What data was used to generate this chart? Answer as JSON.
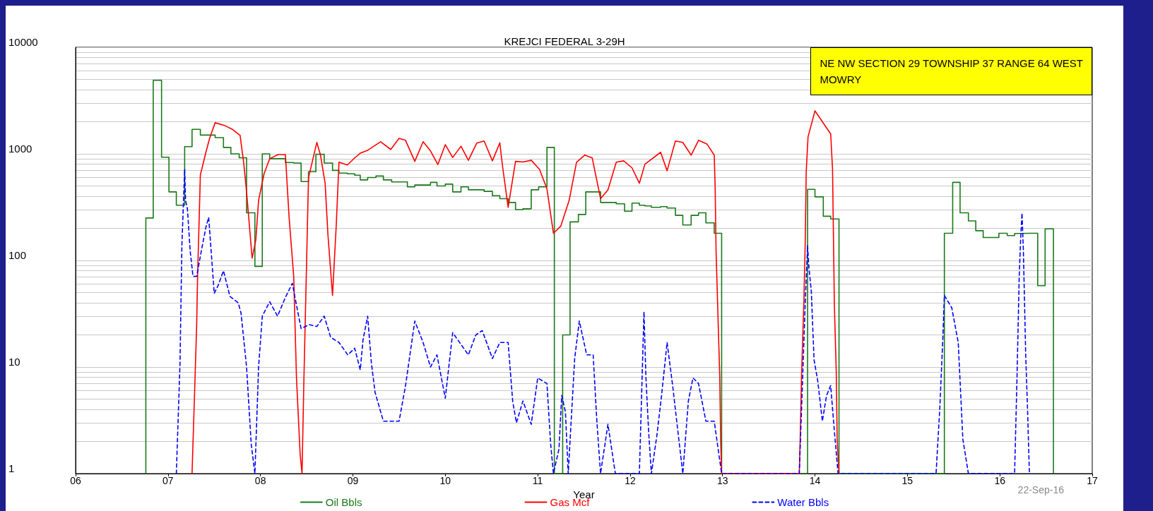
{
  "chart_data": {
    "type": "line",
    "title": "KREJCI FEDERAL 3-29H",
    "xlabel": "Year",
    "annotations": [
      "NE NW SECTION 29 TOWNSHIP 37 RANGE 64 WEST",
      "MOWRY",
      "22-Sep-16"
    ],
    "xlim": [
      6,
      17
    ],
    "xticks": [
      {
        "value": 6,
        "label": "06"
      },
      {
        "value": 7,
        "label": "07"
      },
      {
        "value": 8,
        "label": "08"
      },
      {
        "value": 9,
        "label": "09"
      },
      {
        "value": 10,
        "label": "10"
      },
      {
        "value": 11,
        "label": "11"
      },
      {
        "value": 12,
        "label": "12"
      },
      {
        "value": 13,
        "label": "13"
      },
      {
        "value": 14,
        "label": "14"
      },
      {
        "value": 15,
        "label": "15"
      },
      {
        "value": 16,
        "label": "16"
      },
      {
        "value": 17,
        "label": "17"
      }
    ],
    "ylim": [
      1,
      10000
    ],
    "yticks": [
      1,
      {
        "value": 2,
        "label": null
      },
      {
        "value": 3,
        "label": null
      },
      {
        "value": 4,
        "label": null
      },
      {
        "value": 5,
        "label": null
      },
      {
        "value": 6,
        "label": null
      },
      {
        "value": 7,
        "label": null
      },
      {
        "value": 8,
        "label": null
      },
      {
        "value": 9,
        "label": null
      },
      10,
      {
        "value": 20,
        "label": null
      },
      {
        "value": 30,
        "label": null
      },
      {
        "value": 40,
        "label": null
      },
      {
        "value": 50,
        "label": null
      },
      {
        "value": 60,
        "label": null
      },
      {
        "value": 70,
        "label": null
      },
      {
        "value": 80,
        "label": null
      },
      {
        "value": 90,
        "label": null
      },
      100,
      {
        "value": 200,
        "label": null
      },
      {
        "value": 300,
        "label": null
      },
      {
        "value": 400,
        "label": null
      },
      {
        "value": 500,
        "label": null
      },
      {
        "value": 600,
        "label": null
      },
      {
        "value": 700,
        "label": null
      },
      {
        "value": 800,
        "label": null
      },
      {
        "value": 900,
        "label": null
      },
      1000,
      {
        "value": 2000,
        "label": null
      },
      {
        "value": 3000,
        "label": null
      },
      {
        "value": 4000,
        "label": null
      },
      {
        "value": 5000,
        "label": null
      },
      {
        "value": 6000,
        "label": null
      },
      {
        "value": 7000,
        "label": null
      },
      {
        "value": 8000,
        "label": null
      },
      {
        "value": 9000,
        "label": null
      },
      10000
    ],
    "log": "y",
    "grid": "y",
    "legend": "bottom",
    "marker": "none",
    "series": [
      {
        "name": "Oil Bbls",
        "type": "step",
        "line_style": "solid",
        "color": "#1a7a1a",
        "x": [
          6.76,
          6.76,
          6.84,
          6.93,
          7.01,
          7.09,
          7.18,
          7.26,
          7.35,
          7.51,
          7.6,
          7.68,
          7.77,
          7.85,
          7.94,
          8.02,
          8.1,
          8.27,
          8.36,
          8.44,
          8.52,
          8.6,
          8.69,
          8.78,
          8.85,
          8.94,
          9.02,
          9.08,
          9.16,
          9.25,
          9.33,
          9.42,
          9.59,
          9.67,
          9.84,
          9.91,
          10.0,
          10.08,
          10.17,
          10.25,
          10.42,
          10.51,
          10.59,
          10.68,
          10.76,
          10.84,
          10.93,
          11.01,
          11.1,
          11.18,
          11.27,
          11.35,
          11.44,
          11.52,
          11.68,
          11.76,
          11.85,
          11.94,
          12.02,
          12.1,
          12.16,
          12.23,
          12.33,
          12.4,
          12.49,
          12.57,
          12.66,
          12.74,
          12.82,
          12.91,
          12.99,
          13.92,
          14.0,
          14.09,
          14.17,
          14.26,
          15.4,
          15.49,
          15.57,
          15.66,
          15.74,
          15.82,
          15.99,
          16.08,
          16.16,
          16.24,
          16.32,
          16.41,
          16.49,
          16.58
        ],
        "values": [
          1,
          250,
          4900,
          930,
          440,
          330,
          1170,
          1700,
          1500,
          1420,
          1150,
          1000,
          920,
          280,
          88,
          1000,
          900,
          830,
          820,
          550,
          680,
          990,
          820,
          700,
          660,
          650,
          630,
          570,
          600,
          620,
          570,
          545,
          490,
          510,
          540,
          500,
          520,
          440,
          490,
          460,
          445,
          405,
          380,
          350,
          300,
          305,
          460,
          490,
          1150,
          1,
          20,
          230,
          270,
          440,
          350,
          350,
          340,
          290,
          345,
          330,
          325,
          315,
          320,
          310,
          265,
          215,
          265,
          280,
          225,
          180,
          1,
          465,
          395,
          260,
          245,
          1,
          180,
          540,
          280,
          235,
          190,
          164,
          180,
          171,
          179,
          180,
          180,
          58,
          198,
          1
        ]
      },
      {
        "name": "Gas Mcf",
        "line_style": "solid",
        "color": "#ff0000",
        "x": [
          7.26,
          7.27,
          7.29,
          7.31,
          7.32,
          7.34,
          7.35,
          7.41,
          7.45,
          7.51,
          7.61,
          7.7,
          7.78,
          7.82,
          7.85,
          7.91,
          7.95,
          7.98,
          8.04,
          8.1,
          8.19,
          8.27,
          8.31,
          8.36,
          8.39,
          8.43,
          8.45,
          8.47,
          8.5,
          8.52,
          8.61,
          8.65,
          8.7,
          8.73,
          8.78,
          8.82,
          8.85,
          8.94,
          9.02,
          9.08,
          9.16,
          9.3,
          9.41,
          9.5,
          9.57,
          9.67,
          9.76,
          9.84,
          9.92,
          10.0,
          10.08,
          10.17,
          10.25,
          10.34,
          10.42,
          10.51,
          10.59,
          10.62,
          10.68,
          10.76,
          10.84,
          10.93,
          11.02,
          11.1,
          11.17,
          11.25,
          11.34,
          11.42,
          11.51,
          11.59,
          11.68,
          11.76,
          11.85,
          11.93,
          12.02,
          12.1,
          12.16,
          12.33,
          12.4,
          12.49,
          12.57,
          12.66,
          12.74,
          12.83,
          12.91,
          12.92,
          12.93,
          12.95,
          12.97,
          12.98,
          12.99,
          13.83,
          13.84,
          13.855,
          13.88,
          13.895,
          13.905,
          13.925,
          14.0,
          14.17,
          14.19,
          14.2,
          14.21,
          14.23,
          14.24,
          14.26
        ],
        "values": [
          1,
          1.9,
          6.7,
          25,
          71,
          305,
          635,
          1035,
          1400,
          1960,
          1850,
          1690,
          1490,
          810,
          440,
          105,
          156,
          366,
          655,
          900,
          985,
          985,
          254,
          71,
          7.9,
          1.5,
          1,
          7.4,
          102,
          597,
          1280,
          973,
          528,
          176,
          47,
          212,
          836,
          787,
          916,
          1015,
          1080,
          1300,
          1100,
          1400,
          1340,
          850,
          1300,
          1065,
          795,
          1220,
          925,
          1180,
          870,
          1260,
          1320,
          860,
          1270,
          760,
          315,
          850,
          840,
          870,
          715,
          470,
          180,
          210,
          365,
          835,
          975,
          915,
          380,
          460,
          835,
          860,
          740,
          530,
          800,
          1035,
          695,
          1320,
          1280,
          973,
          1340,
          1240,
          973,
          482,
          122,
          31,
          7.9,
          2.0,
          1,
          1,
          2.1,
          8.6,
          41,
          156,
          675,
          1445,
          2535,
          1540,
          718,
          166,
          38,
          9.2,
          2.1,
          1
        ]
      },
      {
        "name": "Water Bbls",
        "line_style": "dashed",
        "color": "#0000ff",
        "x": [
          7.09,
          7.13,
          7.15,
          7.18,
          7.19,
          7.21,
          7.24,
          7.27,
          7.31,
          7.36,
          7.41,
          7.44,
          7.46,
          7.5,
          7.545,
          7.6,
          7.67,
          7.76,
          7.79,
          7.85,
          7.9,
          7.94,
          7.98,
          8.02,
          8.1,
          8.185,
          8.27,
          8.345,
          8.39,
          8.44,
          8.53,
          8.61,
          8.69,
          8.76,
          8.85,
          8.945,
          9.02,
          9.08,
          9.11,
          9.16,
          9.2,
          9.24,
          9.33,
          9.5,
          9.57,
          9.67,
          9.76,
          9.84,
          9.91,
          10.0,
          10.08,
          10.25,
          10.33,
          10.4,
          10.51,
          10.59,
          10.68,
          10.73,
          10.77,
          10.84,
          10.93,
          11.0,
          11.1,
          11.14,
          11.17,
          11.23,
          11.26,
          11.3,
          11.33,
          11.4,
          11.45,
          11.53,
          11.6,
          11.64,
          11.68,
          11.76,
          11.84,
          12.1,
          12.15,
          12.17,
          12.2,
          12.23,
          12.29,
          12.34,
          12.4,
          12.46,
          12.51,
          12.57,
          12.63,
          12.68,
          12.74,
          12.82,
          12.91,
          12.99,
          13.83,
          13.86,
          13.895,
          13.92,
          13.935,
          13.96,
          13.99,
          14.03,
          14.08,
          14.125,
          14.17,
          14.21,
          14.25,
          15.31,
          15.35,
          15.385,
          15.4,
          15.48,
          15.55,
          15.6,
          15.66,
          16.16,
          16.185,
          16.21,
          16.225,
          16.24,
          16.255,
          16.28,
          16.3,
          16.32
        ],
        "values": [
          1,
          11,
          138,
          718,
          365,
          305,
          122,
          71,
          71,
          122,
          205,
          254,
          147,
          49,
          59,
          80,
          46,
          40,
          32,
          10,
          1.9,
          1,
          10,
          30,
          41,
          30,
          45,
          61,
          38,
          23,
          25,
          24,
          30,
          19,
          17,
          13,
          15,
          9.4,
          18,
          30,
          11,
          5.8,
          3.1,
          3.1,
          6.7,
          27,
          17,
          10,
          13,
          5.1,
          21,
          13,
          20,
          22,
          12,
          17,
          17,
          4.7,
          3,
          4.8,
          2.9,
          7.9,
          7,
          1.9,
          1,
          1.7,
          5.4,
          3.8,
          1,
          12,
          27,
          13,
          13,
          3.1,
          1,
          2.9,
          1,
          1,
          33,
          8.3,
          2.5,
          1,
          2.3,
          5.4,
          17,
          6.7,
          2.8,
          1,
          4.8,
          7.9,
          7,
          3.1,
          3.1,
          1,
          1,
          5.4,
          41,
          138,
          85,
          52,
          11.7,
          7.4,
          3.1,
          5.4,
          6.7,
          2.5,
          1,
          1,
          4.0,
          20,
          47,
          36,
          17,
          2.1,
          1,
          1,
          7.4,
          71,
          156,
          278,
          122,
          13,
          4.0,
          1
        ]
      }
    ]
  }
}
